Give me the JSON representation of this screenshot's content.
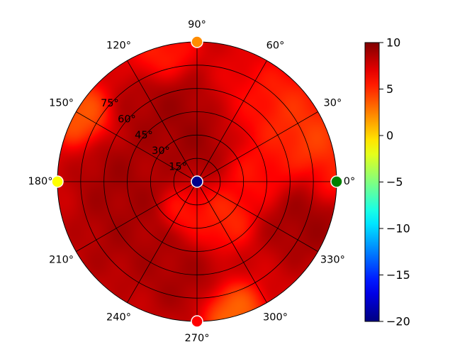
{
  "chart_data": {
    "type": "heatmap",
    "projection": "polar",
    "title": "",
    "colormap": "jet",
    "color_range": [
      -20,
      10
    ],
    "angular_ticks": [
      {
        "deg": 0,
        "label": "0°"
      },
      {
        "deg": 30,
        "label": "30°"
      },
      {
        "deg": 60,
        "label": "60°"
      },
      {
        "deg": 90,
        "label": "90°"
      },
      {
        "deg": 120,
        "label": "120°"
      },
      {
        "deg": 150,
        "label": "150°"
      },
      {
        "deg": 180,
        "label": "180°"
      },
      {
        "deg": 210,
        "label": "210°"
      },
      {
        "deg": 240,
        "label": "240°"
      },
      {
        "deg": 270,
        "label": "270°"
      },
      {
        "deg": 300,
        "label": "300°"
      },
      {
        "deg": 330,
        "label": "330°"
      }
    ],
    "radial_ticks": [
      {
        "value": 15,
        "label": "15°"
      },
      {
        "value": 30,
        "label": "30°"
      },
      {
        "value": 45,
        "label": "45°"
      },
      {
        "value": 60,
        "label": "60°"
      },
      {
        "value": 75,
        "label": "75°"
      }
    ],
    "radial_range": [
      0,
      90
    ],
    "grid": true,
    "colorbar_ticks": [
      {
        "value": 10,
        "label": "10"
      },
      {
        "value": 5,
        "label": "5"
      },
      {
        "value": 0,
        "label": "0"
      },
      {
        "value": -5,
        "label": "−5"
      },
      {
        "value": -10,
        "label": "−10"
      },
      {
        "value": -15,
        "label": "−15"
      },
      {
        "value": -20,
        "label": "−20"
      }
    ],
    "markers": [
      {
        "angle": 0,
        "radius": 90,
        "value": -2,
        "color": "#008000"
      },
      {
        "angle": 90,
        "radius": 90,
        "value": 4,
        "color": "#ff8c00"
      },
      {
        "angle": 180,
        "radius": 90,
        "value": 1,
        "color": "#ffff00"
      },
      {
        "angle": 270,
        "radius": 90,
        "value": 8,
        "color": "#ff0000"
      },
      {
        "angle": 0,
        "radius": 0,
        "value": -20,
        "color": "#00008b"
      }
    ],
    "field": {
      "base_value": 7.5,
      "features": [
        {
          "angle": 95,
          "radius": 40,
          "value": 9.5,
          "spread": 16
        },
        {
          "angle": 120,
          "radius": 50,
          "value": 9,
          "spread": 14
        },
        {
          "angle": 80,
          "radius": 30,
          "value": 9.2,
          "spread": 12
        },
        {
          "angle": 60,
          "radius": 55,
          "value": 6,
          "spread": 15
        },
        {
          "angle": 40,
          "radius": 72,
          "value": 4.5,
          "spread": 14
        },
        {
          "angle": 20,
          "radius": 80,
          "value": 4,
          "spread": 12
        },
        {
          "angle": 10,
          "radius": 40,
          "value": 5.5,
          "spread": 12
        },
        {
          "angle": 150,
          "radius": 88,
          "value": 3,
          "spread": 10
        },
        {
          "angle": 340,
          "radius": 75,
          "value": 9.3,
          "spread": 14
        },
        {
          "angle": 215,
          "radius": 55,
          "value": 9,
          "spread": 18
        },
        {
          "angle": 260,
          "radius": 62,
          "value": 9,
          "spread": 14
        },
        {
          "angle": 285,
          "radius": 88,
          "value": 2.5,
          "spread": 10
        },
        {
          "angle": 290,
          "radius": 28,
          "value": 5.5,
          "spread": 10
        },
        {
          "angle": 310,
          "radius": 30,
          "value": 4.5,
          "spread": 8
        },
        {
          "angle": 240,
          "radius": 22,
          "value": 5,
          "spread": 7
        },
        {
          "angle": 180,
          "radius": 50,
          "value": 9.2,
          "spread": 14
        },
        {
          "angle": 0,
          "radius": 88,
          "value": 5,
          "spread": 8
        },
        {
          "angle": 105,
          "radius": 85,
          "value": 5,
          "spread": 10
        }
      ]
    }
  }
}
